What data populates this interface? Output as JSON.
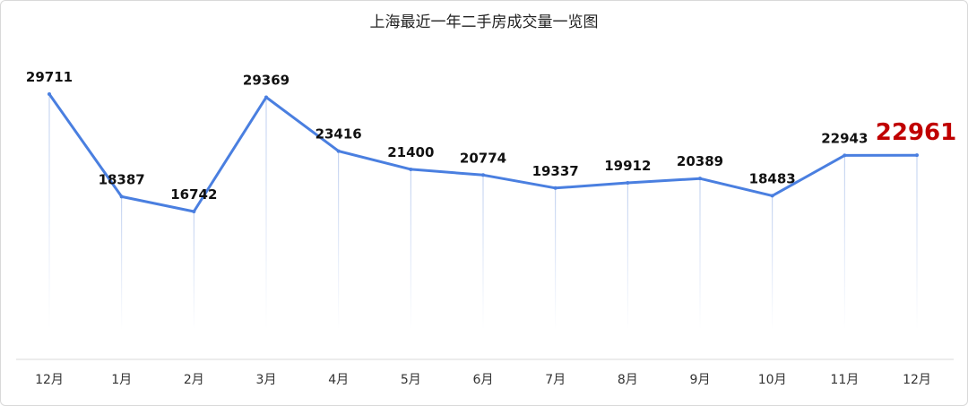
{
  "chart_data": {
    "type": "line",
    "title": "上海最近一年二手房成交量一览图",
    "xlabel": "",
    "ylabel": "",
    "categories": [
      "12月",
      "1月",
      "2月",
      "3月",
      "4月",
      "5月",
      "6月",
      "7月",
      "8月",
      "9月",
      "10月",
      "11月",
      "12月"
    ],
    "series": [
      {
        "values": [
          29711,
          18387,
          16742,
          29369,
          23416,
          21400,
          20774,
          19337,
          19912,
          20389,
          18483,
          22943,
          22961
        ]
      }
    ],
    "ylim": [
      0,
      32000
    ],
    "grid": false,
    "legend": "none",
    "highlight_index": 12,
    "colors": {
      "line": "#4a7fe0",
      "drop_line": "#c9d6ee",
      "highlight_label": "#c00000",
      "label": "#111111",
      "axis": "#d9d9d9"
    }
  }
}
